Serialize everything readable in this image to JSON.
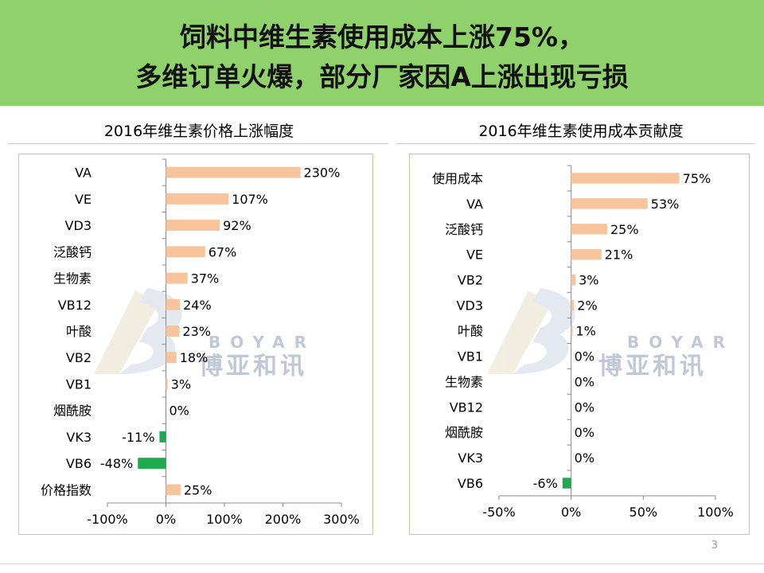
{
  "slide": {
    "title_line1": "饲料中维生素使用成本上涨75%，",
    "title_line2": "多维订单火爆，部分厂家因A上涨出现亏损",
    "page_number": "3",
    "colors": {
      "banner": "#8fd16a",
      "positive_bar": "#f8c49c",
      "negative_bar": "#1faa50"
    }
  },
  "chart_data": [
    {
      "type": "bar",
      "orientation": "horizontal",
      "title": "2016年维生素价格上涨幅度",
      "categories": [
        "VA",
        "VE",
        "VD3",
        "泛酸钙",
        "生物素",
        "VB12",
        "叶酸",
        "VB2",
        "VB1",
        "烟酰胺",
        "VK3",
        "VB6",
        "价格指数"
      ],
      "values": [
        230,
        107,
        92,
        67,
        37,
        24,
        23,
        18,
        3,
        0,
        -11,
        -48,
        25
      ],
      "value_labels": [
        "230%",
        "107%",
        "92%",
        "67%",
        "37%",
        "24%",
        "23%",
        "18%",
        "3%",
        "0%",
        "-11%",
        "-48%",
        "25%"
      ],
      "unit": "%",
      "xlim": [
        -100,
        300
      ],
      "xticks": [
        -100,
        0,
        100,
        200,
        300
      ],
      "xtick_labels": [
        "-100%",
        "0%",
        "100%",
        "200%",
        "300%"
      ],
      "grid": false
    },
    {
      "type": "bar",
      "orientation": "horizontal",
      "title": "2016年维生素使用成本贡献度",
      "categories": [
        "使用成本",
        "VA",
        "泛酸钙",
        "VE",
        "VB2",
        "VD3",
        "叶酸",
        "VB1",
        "生物素",
        "VB12",
        "烟酰胺",
        "VK3",
        "VB6"
      ],
      "values": [
        75,
        53,
        25,
        21,
        3,
        2,
        1,
        0,
        0,
        0,
        0,
        0,
        -6
      ],
      "value_labels": [
        "75%",
        "53%",
        "25%",
        "21%",
        "3%",
        "2%",
        "1%",
        "0%",
        "0%",
        "0%",
        "0%",
        "0%",
        "-6%"
      ],
      "unit": "%",
      "xlim": [
        -50,
        100
      ],
      "xticks": [
        -50,
        0,
        50,
        100
      ],
      "xtick_labels": [
        "-50%",
        "0%",
        "50%",
        "100%"
      ],
      "grid": false
    }
  ],
  "watermark": {
    "brand_en": "BOYAR",
    "brand_cn": "博亚和讯"
  }
}
